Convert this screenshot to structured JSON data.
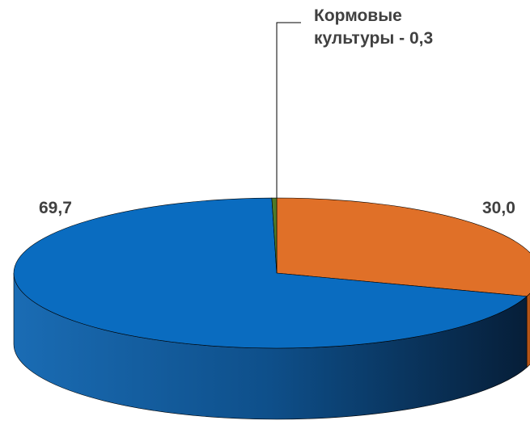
{
  "chart_data": {
    "type": "pie3d",
    "values": [
      30.0,
      69.7,
      0.3
    ],
    "value_labels": [
      "30,0",
      "69,7",
      "Кормовые культуры - 0,3"
    ],
    "colors": [
      "#e07028",
      "#0a6cc0",
      "#4f7a28"
    ]
  }
}
